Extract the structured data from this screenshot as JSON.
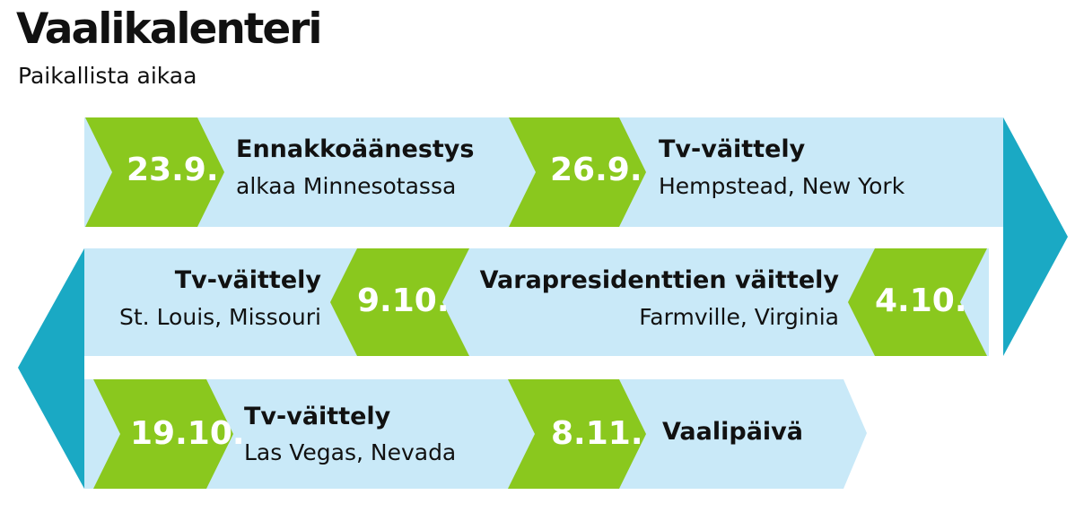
{
  "header": {
    "title": "Vaalikalenteri",
    "subtitle": "Paikallista aikaa"
  },
  "colors": {
    "band": "#c9e9f8",
    "chevron": "#8ac81e",
    "turn_arrow": "#1aa9c4",
    "text": "#111111",
    "date_text": "#ffffff"
  },
  "events": [
    {
      "date": "23.9.",
      "title": "Ennakkoäänestys",
      "place": "alkaa Minnesotassa"
    },
    {
      "date": "26.9.",
      "title": "Tv-väittely",
      "place": "Hempstead, New York"
    },
    {
      "date": "4.10.",
      "title": "Varapresidenttien väittely",
      "place": "Farmville, Virginia"
    },
    {
      "date": "9.10.",
      "title": "Tv-väittely",
      "place": "St. Louis, Missouri"
    },
    {
      "date": "19.10.",
      "title": "Tv-väittely",
      "place": "Las Vegas, Nevada"
    },
    {
      "date": "8.11.",
      "title": "Vaalipäivä",
      "place": ""
    }
  ]
}
